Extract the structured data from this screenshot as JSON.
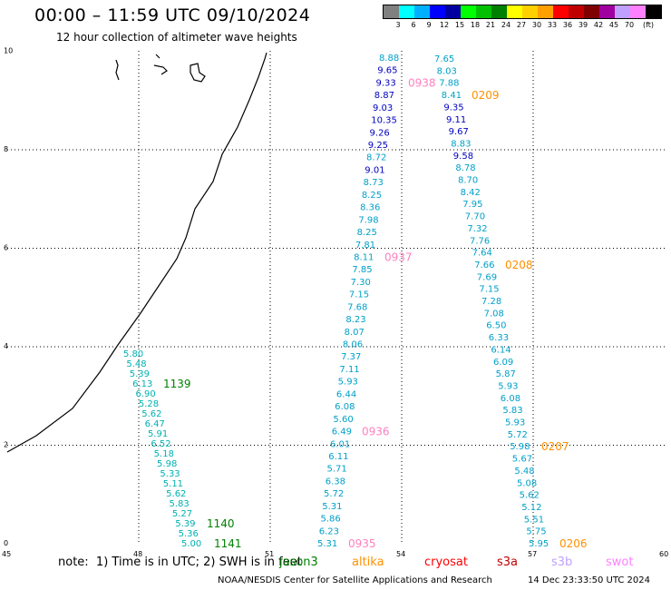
{
  "title": "00:00 – 11:59 UTC 09/10/2024",
  "subtitle": "12 hour collection of altimeter wave heights",
  "legend": {
    "colors": [
      "#808080",
      "#00ffff",
      "#00b0ff",
      "#0000ff",
      "#0000a0",
      "#00ff00",
      "#00c000",
      "#008000",
      "#ffff00",
      "#ffd000",
      "#ffa000",
      "#ff0000",
      "#c00000",
      "#800000",
      "#a000a0",
      "#c0a0ff",
      "#ff80ff",
      "#000000"
    ],
    "labels": [
      "3",
      "6",
      "9",
      "12",
      "15",
      "18",
      "21",
      "24",
      "27",
      "30",
      "33",
      "36",
      "39",
      "42",
      "45",
      "70",
      "(ft)"
    ]
  },
  "axes": {
    "x_ticks": [
      "45",
      "48",
      "51",
      "54",
      "57",
      "60"
    ],
    "y_ticks": [
      "0",
      "2",
      "4",
      "6",
      "8",
      "10"
    ]
  },
  "tracks": [
    {
      "color": "#00b0b0",
      "values": [
        "5.80",
        "5.48",
        "5.39",
        "6.13",
        "6.90",
        "5.28",
        "5.62",
        "6.47",
        "5.91",
        "6.52",
        "5.18",
        "5.98",
        "5.33",
        "5.11",
        "5.62",
        "5.83",
        "5.27",
        "5.39",
        "5.36",
        "5.00"
      ],
      "time_labels": [
        {
          "text": "1139",
          "color": "#008000",
          "at": 3
        },
        {
          "text": "1140",
          "color": "#008000",
          "at": 17
        },
        {
          "text": "1141",
          "color": "#008000",
          "at": 19
        }
      ]
    },
    {
      "color": "#00a0c8",
      "values": [
        "8.88",
        "9.65",
        "9.33",
        "8.87",
        "9.03",
        "10.35",
        "9.26",
        "9.25",
        "8.72",
        "9.01",
        "8.73",
        "8.25",
        "8.36",
        "7.98",
        "8.25",
        "7.81",
        "8.11",
        "7.85",
        "7.30",
        "7.15",
        "7.68",
        "8.23",
        "8.07",
        "8.06",
        "7.37",
        "7.11",
        "5.93",
        "6.44",
        "6.08",
        "5.60",
        "6.49",
        "6.01",
        "6.11",
        "5.71",
        "6.38",
        "5.72",
        "5.31",
        "5.86",
        "6.23",
        "5.31"
      ],
      "time_labels": [
        {
          "text": "0938",
          "color": "#ff80c0",
          "at": 2
        },
        {
          "text": "0937",
          "color": "#ff80c0",
          "at": 16
        },
        {
          "text": "0936",
          "color": "#ff80c0",
          "at": 30
        },
        {
          "text": "0935",
          "color": "#ff80c0",
          "at": 39
        }
      ]
    },
    {
      "color": "#00a0c8",
      "values": [
        "7.65",
        "8.03",
        "7.88",
        "8.41",
        "9.35",
        "9.11",
        "9.67",
        "8.83",
        "9.58",
        "8.78",
        "8.70",
        "8.42",
        "7.95",
        "7.70",
        "7.32",
        "7.76",
        "7.64",
        "7.66",
        "7.69",
        "7.15",
        "7.28",
        "7.08",
        "6.50",
        "6.33",
        "6.14",
        "6.09",
        "5.87",
        "5.93",
        "6.08",
        "5.83",
        "5.93",
        "5.72",
        "5.98",
        "5.67",
        "5.48",
        "5.08",
        "5.62",
        "5.12",
        "5.51",
        "5.75",
        "5.95"
      ],
      "time_labels": [
        {
          "text": "0209",
          "color": "#ff9000",
          "at": 3
        },
        {
          "text": "0208",
          "color": "#ff9000",
          "at": 17
        },
        {
          "text": "0207",
          "color": "#ff9000",
          "at": 32
        },
        {
          "text": "0206",
          "color": "#ff9000",
          "at": 40
        }
      ]
    }
  ],
  "note": "note:  1) Time is in UTC; 2) SWH is in feet",
  "satellites": [
    {
      "name": "jason3",
      "color": "#008000"
    },
    {
      "name": "altika",
      "color": "#ff9000"
    },
    {
      "name": "cryosat",
      "color": "#ff0000"
    },
    {
      "name": "s3a",
      "color": "#c00000"
    },
    {
      "name": "s3b",
      "color": "#c0a0ff"
    },
    {
      "name": "swot",
      "color": "#ff80ff"
    }
  ],
  "credit": "NOAA/NESDIS Center for Satellite Applications and Research",
  "timestamp": "14 Dec 23:33:50 UTC 2024"
}
